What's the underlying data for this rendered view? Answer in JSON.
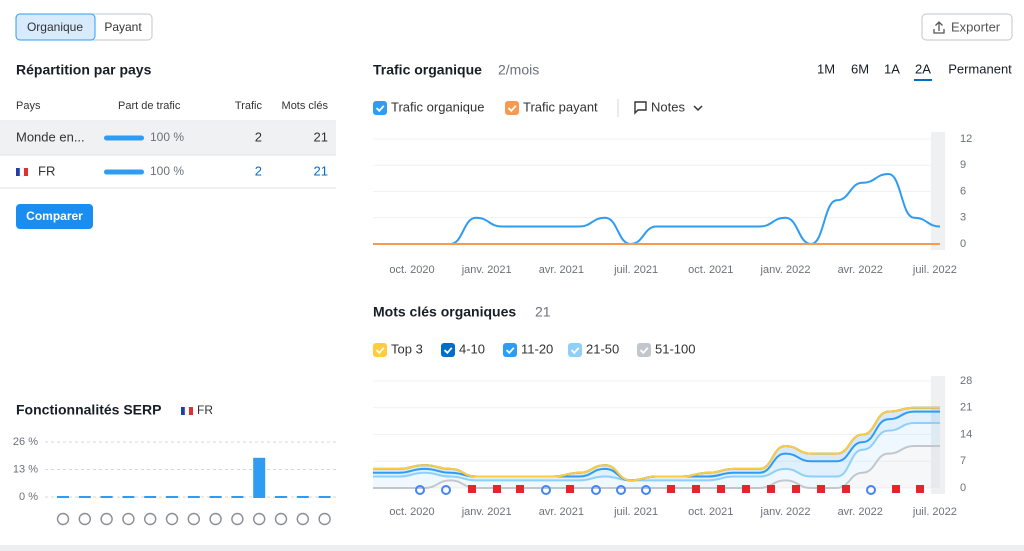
{
  "tabs": [
    "Organique",
    "Payant"
  ],
  "export_button": "Exporter",
  "country_table": {
    "title": "Répartition par pays",
    "headers": [
      "Pays",
      "Part de trafic",
      "Trafic",
      "Mots clés"
    ],
    "rows": [
      {
        "country": "Monde en...",
        "share": 100,
        "share_label": "100 %",
        "traffic": 2,
        "keywords": 21
      },
      {
        "country": "FR",
        "share": 100,
        "share_label": "100 %",
        "traffic": 2,
        "keywords": 21
      }
    ]
  },
  "compare_button": "Comparer",
  "traffic_chart": {
    "type": "line",
    "title": "Trafic organique",
    "subtitle": "2/mois",
    "periods": [
      "1M",
      "6M",
      "1A",
      "2A",
      "Permanent"
    ],
    "active_period": "2A",
    "notes": "Notes",
    "x_labels": [
      "oct. 2020",
      "janv. 2021",
      "avr. 2021",
      "juil. 2021",
      "oct. 2021",
      "janv. 2022",
      "avr. 2022",
      "juil. 2022"
    ],
    "ylim": [
      0,
      12
    ],
    "yticks": [
      0,
      3,
      6,
      9,
      12
    ],
    "series": [
      {
        "name": "Trafic organique",
        "color": "#2e9cf2",
        "values": [
          0,
          0,
          0,
          0,
          3,
          2,
          2,
          2,
          2,
          3,
          0,
          2,
          2,
          2,
          2,
          2,
          3,
          0,
          5,
          7,
          8,
          3,
          2
        ]
      },
      {
        "name": "Trafic payant",
        "color": "#f59a4f",
        "values": [
          0,
          0,
          0,
          0,
          0,
          0,
          0,
          0,
          0,
          0,
          0,
          0,
          0,
          0,
          0,
          0,
          0,
          0,
          0,
          0,
          0,
          0,
          0
        ]
      }
    ]
  },
  "keywords_chart": {
    "type": "stacked_area",
    "title": "Mots clés organiques",
    "total": 21,
    "x_labels": [
      "oct. 2020",
      "janv. 2021",
      "avr. 2021",
      "juil. 2021",
      "oct. 2021",
      "janv. 2022",
      "avr. 2022",
      "juil. 2022"
    ],
    "ylim": [
      0,
      28
    ],
    "yticks": [
      0,
      7,
      14,
      21,
      28
    ],
    "series": [
      {
        "name": "51-100",
        "color": "#c2c7cd",
        "values": [
          0,
          0,
          0,
          2,
          0,
          0,
          0,
          0,
          0,
          0,
          0,
          0,
          0,
          0,
          0,
          0,
          2,
          0,
          0,
          4,
          9,
          11,
          11
        ]
      },
      {
        "name": "21-50",
        "color": "#8fd0fb",
        "values": [
          3,
          3,
          4,
          1,
          2,
          2,
          2,
          2,
          2,
          3,
          2,
          2,
          2,
          2,
          3,
          3,
          3,
          3,
          3,
          6,
          6,
          6,
          6
        ]
      },
      {
        "name": "11-20",
        "color": "#2e9cf2",
        "values": [
          1,
          1,
          1,
          1,
          1,
          1,
          1,
          1,
          1,
          2,
          0,
          1,
          1,
          1,
          1,
          1,
          4,
          4,
          4,
          2,
          3,
          3,
          3
        ]
      },
      {
        "name": "4-10",
        "color": "#006dca",
        "values": [
          1,
          1,
          1,
          1,
          0,
          0,
          0,
          0,
          1,
          1,
          0,
          0,
          0,
          1,
          1,
          1,
          2,
          2,
          2,
          2,
          2,
          1,
          1
        ]
      },
      {
        "name": "Top 3",
        "color": "#ffcc3e",
        "values": [
          0,
          0,
          0,
          0,
          0,
          0,
          0,
          0,
          0,
          0,
          0,
          0,
          0,
          0,
          0,
          0,
          0,
          0,
          0,
          0,
          0,
          0,
          0
        ]
      }
    ],
    "legend_order": [
      4,
      3,
      2,
      1,
      0
    ]
  },
  "serp_chart": {
    "type": "bar",
    "title": "Fonctionnalités SERP",
    "country": "FR",
    "color": "#2e9cf2",
    "ylim": [
      0,
      26
    ],
    "yticks": [
      {
        "value": 0,
        "label": "0 %"
      },
      {
        "value": 13,
        "label": "13 %"
      },
      {
        "value": 26,
        "label": "26 %"
      }
    ],
    "values": [
      0,
      0,
      0,
      0,
      0,
      0,
      0,
      0,
      0,
      19,
      0,
      0,
      0
    ]
  }
}
